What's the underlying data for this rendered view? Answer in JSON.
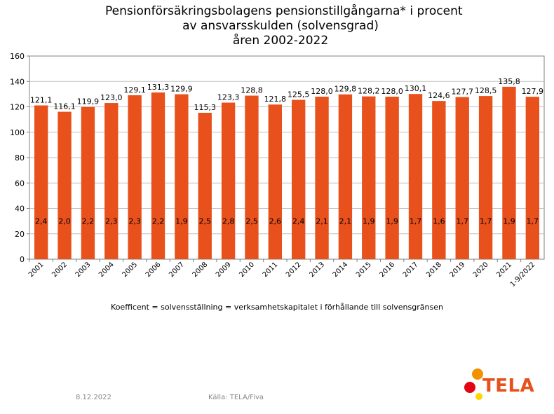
{
  "title": {
    "line1": "Pensionförsäkringsbolagens pensionstillgångarna* i procent",
    "line2": "av ansvarsskulden (solvensgrad)",
    "line3": "åren 2002-2022"
  },
  "note": "Koefficent = solvensställning = verksamhetskapitalet i förhållande till solvensgränsen",
  "footer": {
    "date": "8.12.2022",
    "source": "Källa: TELA/Fiva"
  },
  "logo": {
    "text": "TELA",
    "colors": {
      "orange": "#F39200",
      "red": "#E30613",
      "yellow": "#FFD500",
      "text": "#E8501C"
    }
  },
  "colors": {
    "bar": "#E8501C",
    "grid": "#bfbfbf"
  },
  "chart_data": {
    "type": "bar",
    "categories": [
      "2001",
      "2002",
      "2003",
      "2004",
      "2005",
      "2006",
      "2007",
      "2008",
      "2009",
      "2010",
      "2011",
      "2012",
      "2013",
      "2014",
      "2015",
      "2016",
      "2017",
      "2018",
      "2019",
      "2020",
      "2021",
      "1-9/2022"
    ],
    "values": [
      121.1,
      116.1,
      119.9,
      123.0,
      129.1,
      131.3,
      129.9,
      115.3,
      123.3,
      128.8,
      121.8,
      125.5,
      128.0,
      129.8,
      128.2,
      128.0,
      130.1,
      124.6,
      127.7,
      128.5,
      135.8,
      127.9
    ],
    "value_labels": [
      "121,1",
      "116,1",
      "119,9",
      "123,0",
      "129,1",
      "131,3",
      "129,9",
      "115,3",
      "123,3",
      "128,8",
      "121,8",
      "125,5",
      "128,0",
      "129,8",
      "128,2",
      "128,0",
      "130,1",
      "124,6",
      "127,7",
      "128,5",
      "135,8",
      "127,9"
    ],
    "inner_labels": [
      "2,4",
      "2,0",
      "2,2",
      "2,3",
      "2,3",
      "2,2",
      "1,9",
      "2,5",
      "2,8",
      "2,5",
      "2,6",
      "2,4",
      "2,1",
      "2,1",
      "1,9",
      "1,9",
      "1,7",
      "1,6",
      "1,7",
      "1,7",
      "1,9",
      "1,7"
    ],
    "ylim": [
      0,
      160
    ],
    "yticks": [
      "0",
      "20",
      "40",
      "60",
      "80",
      "100",
      "120",
      "140",
      "160"
    ],
    "grid": true,
    "legend": "none"
  }
}
